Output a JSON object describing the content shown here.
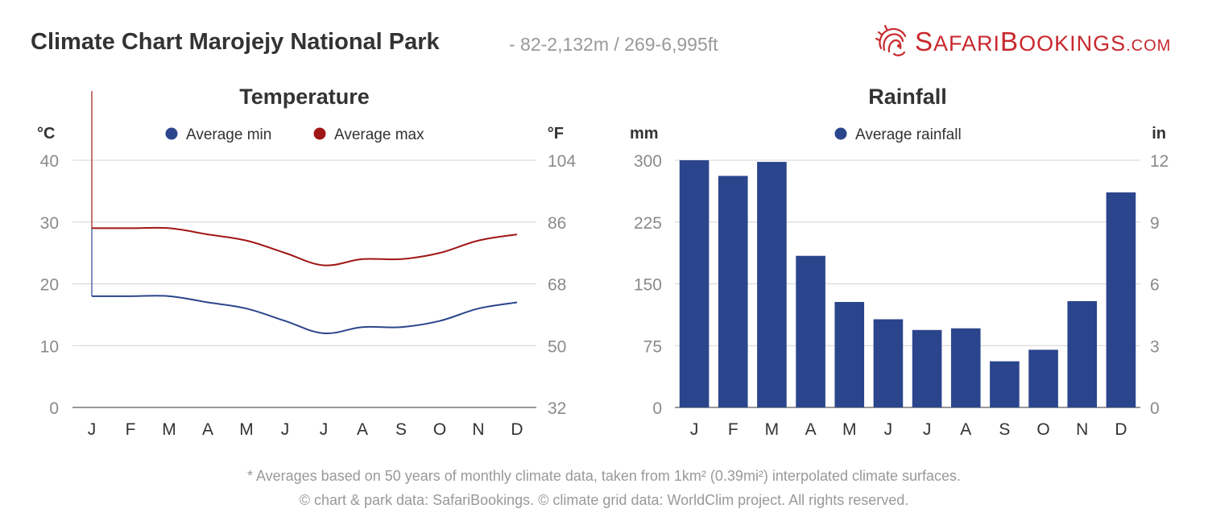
{
  "header": {
    "title": "Climate Chart Marojejy National Park",
    "subtitle": "- 82-2,132m / 269-6,995ft"
  },
  "logo": {
    "text_big_1": "S",
    "text_1": "AFARI",
    "text_big_2": "B",
    "text_2": "OOKINGS",
    "text_3": ".COM",
    "icon": "lion-icon",
    "brand_color": "#c8282d"
  },
  "chart_data": [
    {
      "type": "line",
      "title": "Temperature",
      "left_unit": "°C",
      "right_unit": "°F",
      "categories": [
        "J",
        "F",
        "M",
        "A",
        "M",
        "J",
        "J",
        "A",
        "S",
        "O",
        "N",
        "D"
      ],
      "ylim": [
        0,
        40
      ],
      "left_ticks": [
        "0",
        "10",
        "20",
        "30",
        "40"
      ],
      "right_ticks": [
        "32",
        "50",
        "68",
        "86",
        "104"
      ],
      "grid": true,
      "legend_position": "top-center",
      "series": [
        {
          "name": "Average min",
          "color": "#2b458c",
          "values": [
            18,
            18,
            18,
            17,
            16,
            14,
            12,
            13,
            13,
            14,
            16,
            17
          ]
        },
        {
          "name": "Average max",
          "color": "#a01616",
          "values": [
            29,
            29,
            29,
            28,
            27,
            25,
            23,
            24,
            24,
            25,
            27,
            28
          ]
        }
      ]
    },
    {
      "type": "bar",
      "title": "Rainfall",
      "left_unit": "mm",
      "right_unit": "in",
      "categories": [
        "J",
        "F",
        "M",
        "A",
        "M",
        "J",
        "J",
        "A",
        "S",
        "O",
        "N",
        "D"
      ],
      "ylim": [
        0,
        300
      ],
      "left_ticks": [
        "0",
        "75",
        "150",
        "225",
        "300"
      ],
      "right_ticks": [
        "0",
        "3",
        "6",
        "9",
        "12"
      ],
      "grid": true,
      "legend_position": "top-center",
      "series": [
        {
          "name": "Average rainfall",
          "color": "#2b458c",
          "values": [
            300,
            281,
            298,
            184,
            128,
            107,
            94,
            96,
            56,
            70,
            129,
            261
          ]
        }
      ]
    }
  ],
  "footnote": {
    "line1": "* Averages based on 50 years of monthly climate data, taken from 1km² (0.39mi²) interpolated climate surfaces.",
    "line2": "© chart & park data: SafariBookings. © climate grid data: WorldClim project. All rights reserved."
  }
}
